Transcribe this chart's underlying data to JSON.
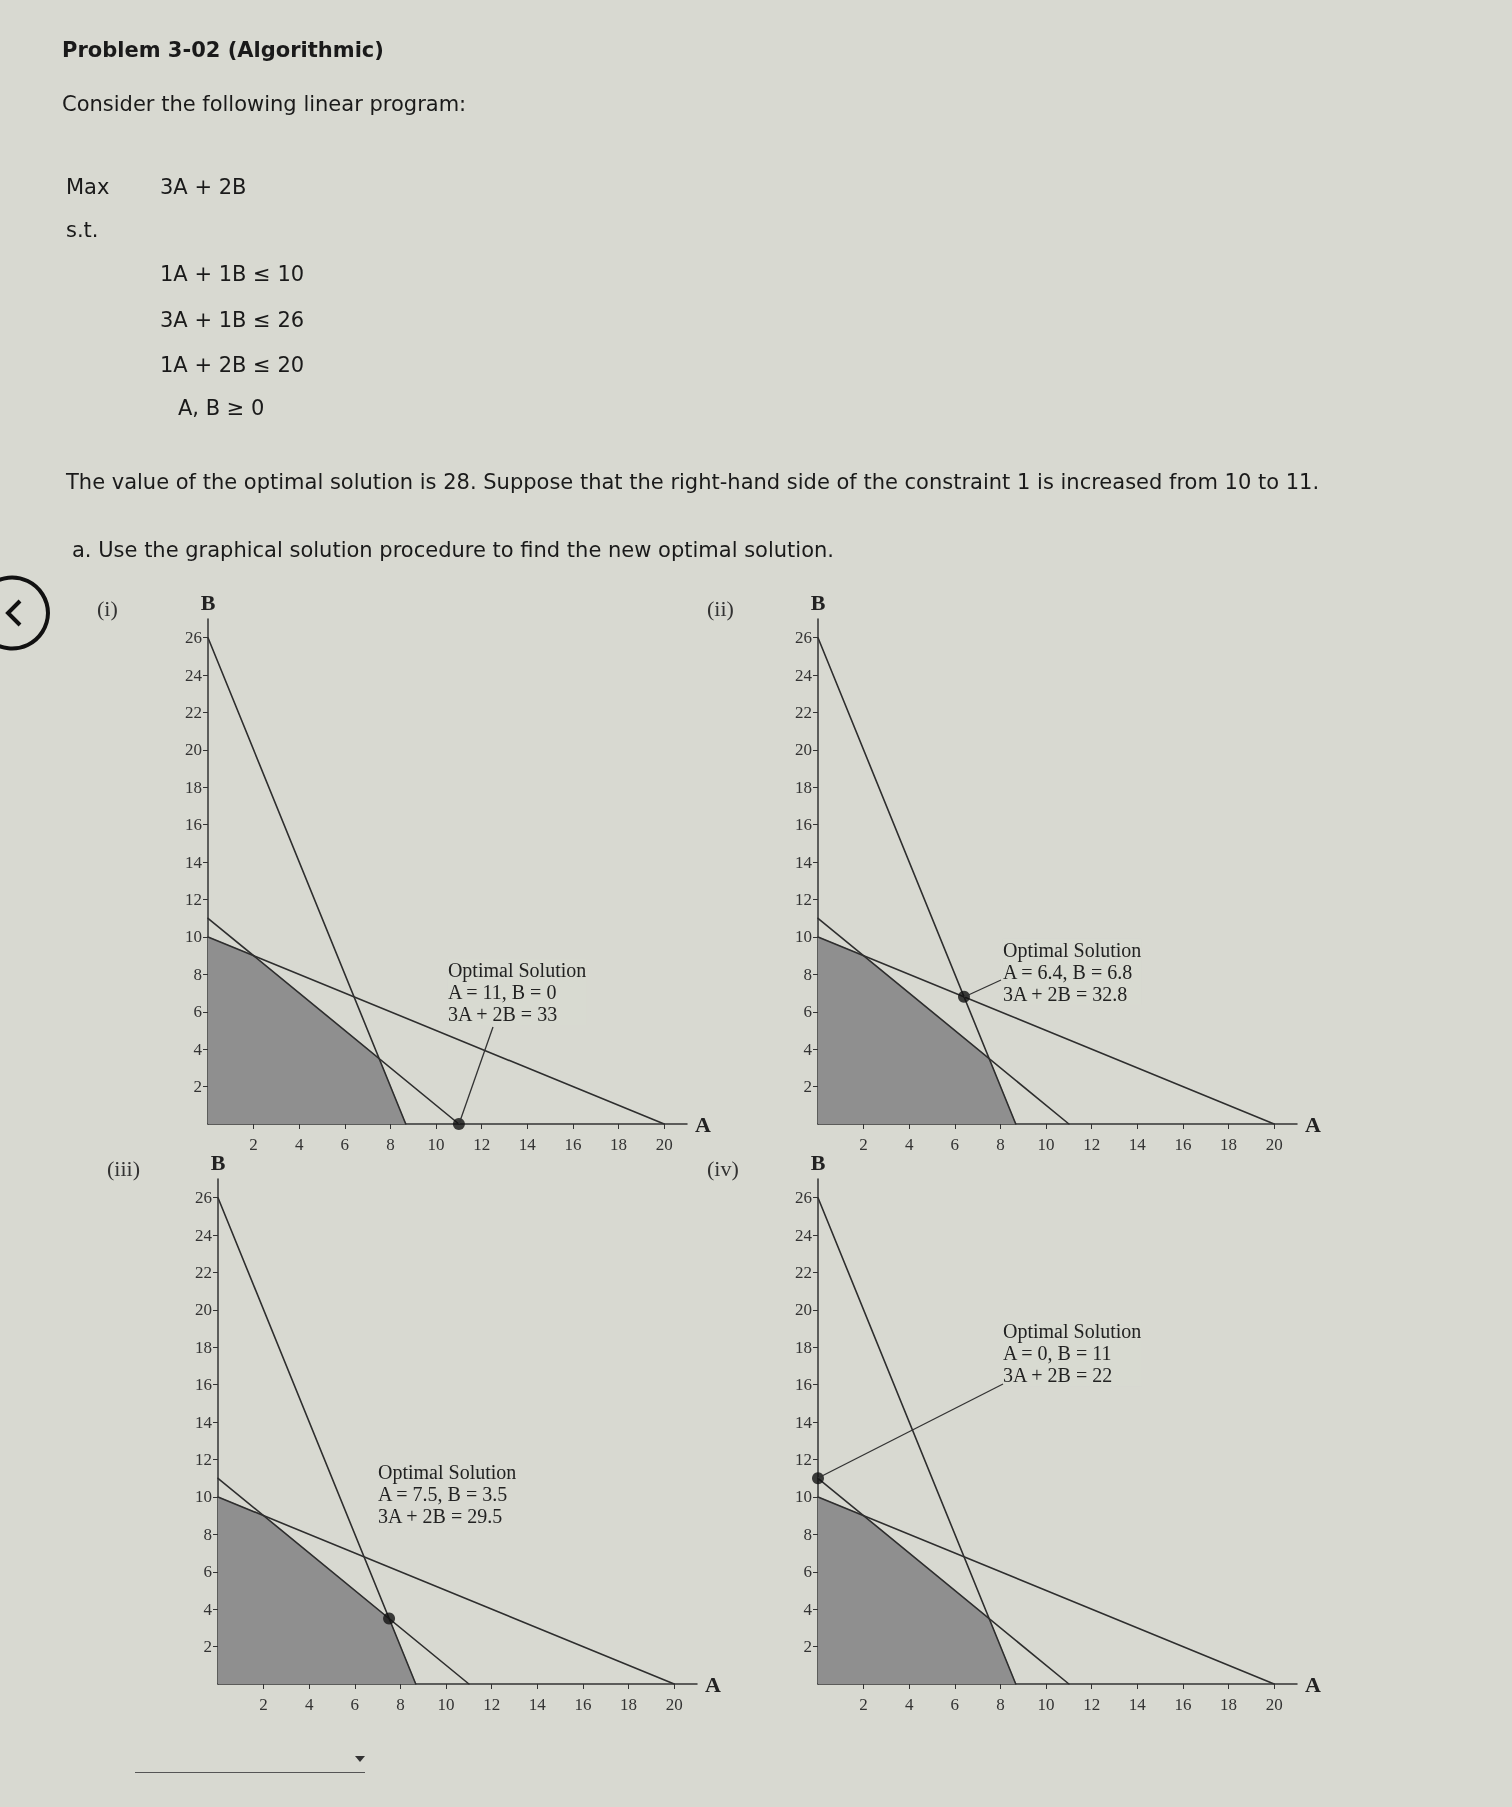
{
  "chart_data": [
    {
      "type": "other",
      "title": "Problem 3-02 (Algorithmic)",
      "annotations": [
        "Consider the following linear program:",
        "Max",
        "3A + 2B",
        "s.t.",
        "1A + 1B ≤ 10",
        "3A + 1B ≤ 26",
        "1A + 2B ≤ 20",
        "A, B ≥ 0",
        "The value of the optimal solution is 28. Suppose that the right-hand side of the constraint 1 is increased from 10 to 11.",
        "a. Use the graphical solution procedure to find the new optimal solution."
      ]
    },
    {
      "type": "line",
      "title": "(i)",
      "xlabel": "A",
      "ylabel": "B",
      "xlim": [
        0,
        21
      ],
      "ylim": [
        0,
        27
      ],
      "xticks": [
        2,
        4,
        6,
        8,
        10,
        12,
        14,
        16,
        18,
        20
      ],
      "yticks": [
        2,
        4,
        6,
        8,
        10,
        12,
        14,
        16,
        18,
        20,
        22,
        24,
        26
      ],
      "grid": false,
      "marker": "none",
      "series": [
        {
          "type": "area",
          "color": "#8f8f8f",
          "x": [
            0,
            2,
            7.5,
            8.67
          ],
          "values": [
            10,
            9,
            3.5,
            0
          ]
        },
        {
          "color": "#2e2e2e",
          "x": [
            0,
            8.67
          ],
          "values": [
            26,
            0
          ]
        },
        {
          "color": "#2e2e2e",
          "x": [
            0,
            11
          ],
          "values": [
            11,
            0
          ]
        },
        {
          "color": "#2e2e2e",
          "x": [
            0,
            20
          ],
          "values": [
            10,
            0
          ]
        },
        {
          "type": "scatter",
          "marker": "circle",
          "color": "#111111",
          "x": [
            11
          ],
          "values": [
            0
          ]
        }
      ],
      "annotations": [
        {
          "text": "Optimal Solution\nA = 11, B = 0\n3A + 2B = 33",
          "x": 11,
          "y": 0
        }
      ]
    },
    {
      "type": "line",
      "title": "(ii)",
      "xlabel": "A",
      "ylabel": "B",
      "xlim": [
        0,
        21
      ],
      "ylim": [
        0,
        27
      ],
      "xticks": [
        2,
        4,
        6,
        8,
        10,
        12,
        14,
        16,
        18,
        20
      ],
      "yticks": [
        2,
        4,
        6,
        8,
        10,
        12,
        14,
        16,
        18,
        20,
        22,
        24,
        26
      ],
      "grid": false,
      "marker": "none",
      "series": [
        {
          "type": "area",
          "color": "#8f8f8f",
          "x": [
            0,
            2,
            7.5,
            8.67
          ],
          "values": [
            10,
            9,
            3.5,
            0
          ]
        },
        {
          "color": "#2e2e2e",
          "x": [
            0,
            8.67
          ],
          "values": [
            26,
            0
          ]
        },
        {
          "color": "#2e2e2e",
          "x": [
            0,
            11
          ],
          "values": [
            11,
            0
          ]
        },
        {
          "color": "#2e2e2e",
          "x": [
            0,
            20
          ],
          "values": [
            10,
            0
          ]
        },
        {
          "type": "scatter",
          "marker": "circle",
          "color": "#111111",
          "x": [
            6.4
          ],
          "values": [
            6.8
          ]
        }
      ],
      "annotations": [
        {
          "text": "Optimal Solution\nA = 6.4, B = 6.8\n3A + 2B = 32.8",
          "x": 6.4,
          "y": 6.8
        }
      ]
    },
    {
      "type": "line",
      "title": "(iii)",
      "xlabel": "A",
      "ylabel": "B",
      "xlim": [
        0,
        21
      ],
      "ylim": [
        0,
        27
      ],
      "xticks": [
        2,
        4,
        6,
        8,
        10,
        12,
        14,
        16,
        18,
        20
      ],
      "yticks": [
        2,
        4,
        6,
        8,
        10,
        12,
        14,
        16,
        18,
        20,
        22,
        24,
        26
      ],
      "grid": false,
      "marker": "none",
      "series": [
        {
          "type": "area",
          "color": "#8f8f8f",
          "x": [
            0,
            2,
            7.5,
            8.67
          ],
          "values": [
            10,
            9,
            3.5,
            0
          ]
        },
        {
          "color": "#2e2e2e",
          "x": [
            0,
            8.67
          ],
          "values": [
            26,
            0
          ]
        },
        {
          "color": "#2e2e2e",
          "x": [
            0,
            11
          ],
          "values": [
            11,
            0
          ]
        },
        {
          "color": "#2e2e2e",
          "x": [
            0,
            20
          ],
          "values": [
            10,
            0
          ]
        },
        {
          "type": "scatter",
          "marker": "circle",
          "color": "#111111",
          "x": [
            7.5
          ],
          "values": [
            3.5
          ]
        }
      ],
      "annotations": [
        "Optimal Solution\nA = 7.5, B = 3.5\n3A + 2B = 29.5"
      ]
    },
    {
      "type": "line",
      "title": "(iv)",
      "xlabel": "A",
      "ylabel": "B",
      "xlim": [
        0,
        21
      ],
      "ylim": [
        0,
        27
      ],
      "xticks": [
        2,
        4,
        6,
        8,
        10,
        12,
        14,
        16,
        18,
        20
      ],
      "yticks": [
        2,
        4,
        6,
        8,
        10,
        12,
        14,
        16,
        18,
        20,
        22,
        24,
        26
      ],
      "grid": false,
      "marker": "none",
      "series": [
        {
          "type": "area",
          "color": "#8f8f8f",
          "x": [
            0,
            2,
            7.5,
            8.67
          ],
          "values": [
            10,
            9,
            3.5,
            0
          ]
        },
        {
          "color": "#2e2e2e",
          "x": [
            0,
            8.67
          ],
          "values": [
            26,
            0
          ]
        },
        {
          "color": "#2e2e2e",
          "x": [
            0,
            11
          ],
          "values": [
            11,
            0
          ]
        },
        {
          "color": "#2e2e2e",
          "x": [
            0,
            20
          ],
          "values": [
            10,
            0
          ]
        },
        {
          "type": "scatter",
          "marker": "circle",
          "color": "#111111",
          "x": [
            0
          ],
          "values": [
            11
          ]
        }
      ],
      "annotations": [
        {
          "text": "Optimal Solution\nA = 0, B = 11\n3A + 2B = 22",
          "x": 0,
          "y": 11
        }
      ]
    }
  ]
}
